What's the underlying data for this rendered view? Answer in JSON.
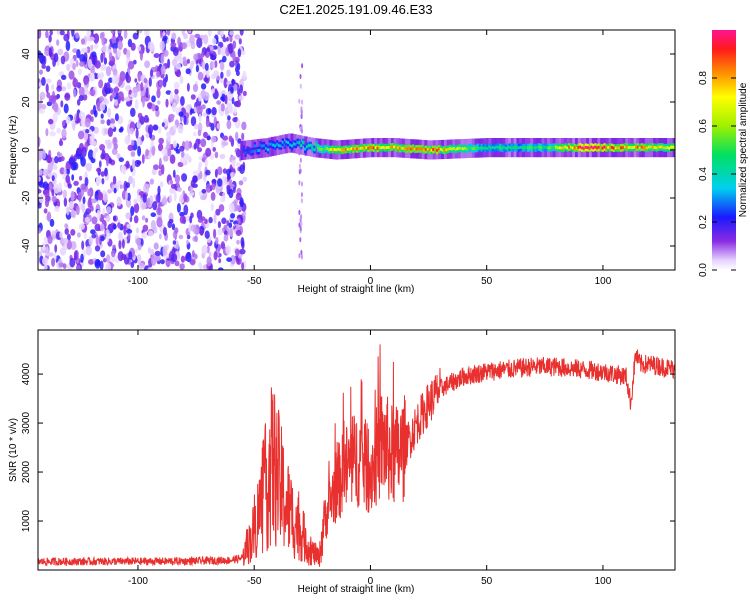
{
  "title": "C2E1.2025.191.09.46.E33",
  "chart_data": [
    {
      "type": "heatmap",
      "xlabel": "Height of straight line (km)",
      "ylabel": "Frequency (Hz)",
      "xlim": [
        -143,
        131
      ],
      "ylim": [
        -50,
        50
      ],
      "xticks": [
        -100,
        -50,
        0,
        50,
        100
      ],
      "yticks": [
        -40,
        -20,
        0,
        20,
        40
      ],
      "colorbar": {
        "label": "Normalized spectral amplitude",
        "range": [
          0,
          1
        ],
        "ticks": [
          "0.0",
          "0.2",
          "0.4",
          "0.6",
          "0.8"
        ]
      },
      "noise_region_x": [
        -143,
        -54
      ],
      "ridge": [
        {
          "x": -54,
          "f": 0,
          "amp": 0.25
        },
        {
          "x": -45,
          "f": 1,
          "amp": 0.35
        },
        {
          "x": -35,
          "f": 3,
          "amp": 0.35
        },
        {
          "x": -25,
          "f": 1,
          "amp": 0.45
        },
        {
          "x": -15,
          "f": 0,
          "amp": 0.8
        },
        {
          "x": 0,
          "f": 1,
          "amp": 0.85
        },
        {
          "x": 10,
          "f": 1,
          "amp": 0.75
        },
        {
          "x": 25,
          "f": 0,
          "amp": 0.9
        },
        {
          "x": 50,
          "f": 1,
          "amp": 0.45
        },
        {
          "x": 75,
          "f": 1,
          "amp": 0.5
        },
        {
          "x": 90,
          "f": 1,
          "amp": 1.0
        },
        {
          "x": 110,
          "f": 1,
          "amp": 0.85
        },
        {
          "x": 131,
          "f": 1,
          "amp": 0.7
        }
      ]
    },
    {
      "type": "line",
      "xlabel": "Height of straight line (km)",
      "ylabel": "SNR (10 * v/v)",
      "xlim": [
        -143,
        131
      ],
      "ylim": [
        0,
        4900
      ],
      "xticks": [
        -100,
        -50,
        0,
        50,
        100
      ],
      "yticks": [
        1000,
        2000,
        3000,
        4000
      ],
      "series": [
        {
          "color": "#e8302e",
          "x": [
            -143,
            -120,
            -100,
            -80,
            -60,
            -55,
            -50,
            -45,
            -42,
            -38,
            -34,
            -30,
            -26,
            -22,
            -20,
            -15,
            -10,
            -5,
            0,
            5,
            10,
            15,
            20,
            25,
            30,
            40,
            50,
            60,
            70,
            80,
            90,
            100,
            105,
            110,
            112,
            114,
            116,
            120,
            131
          ],
          "y": [
            170,
            175,
            175,
            180,
            200,
            250,
            800,
            1700,
            2200,
            1600,
            1100,
            800,
            400,
            250,
            1000,
            1700,
            2100,
            2300,
            2000,
            2600,
            2300,
            2500,
            3000,
            3400,
            3700,
            3950,
            4050,
            4100,
            4150,
            4150,
            4100,
            4050,
            4000,
            3950,
            3400,
            4400,
            4200,
            4200,
            4100
          ]
        }
      ]
    }
  ]
}
